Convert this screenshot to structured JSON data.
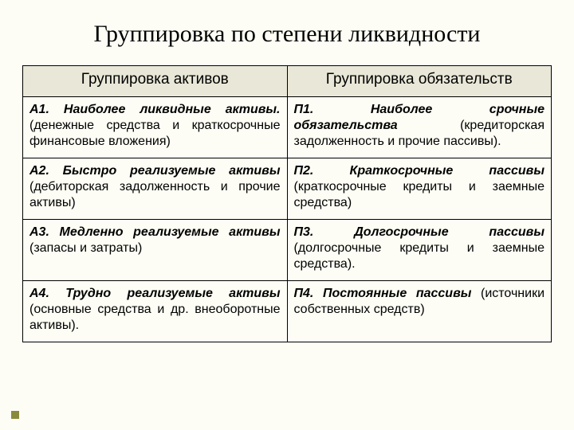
{
  "title": "Группировка по степени ликвидности",
  "columns": {
    "left": "Группировка активов",
    "right": "Группировка обязательств"
  },
  "rows": [
    {
      "a_head": "А1. Наиболее ликвидные активы.",
      "a_rest": " (денежные средства и краткосрочные финансовые вложения)",
      "p_head": "П1. Наиболее срочные обязательства",
      "p_rest": " (кредиторская задолженность и прочие пассивы)."
    },
    {
      "a_head": "А2. Быстро реализуемые активы",
      "a_rest": " (дебиторская задолженность и прочие активы)",
      "p_head": "П2. Краткосрочные пассивы",
      "p_rest": " (краткосрочные кредиты и заемные средства)"
    },
    {
      "a_head": "А3. Медленно реализуемые активы",
      "a_rest": " (запасы и затраты)",
      "p_head": "П3. Долгосрочные пассивы",
      "p_rest": " (долгосрочные кредиты и заемные средства)."
    },
    {
      "a_head": "А4. Трудно реализуемые активы",
      "a_rest": " (основные средства и др. внеоборотные активы).",
      "p_head": "П4. Постоянные пассивы",
      "p_rest": " (источники собственных средств)"
    }
  ],
  "colors": {
    "background": "#fdfdf5",
    "header_bg": "#e9e7d7",
    "border": "#000000",
    "bullet": "#8a8a3e"
  }
}
